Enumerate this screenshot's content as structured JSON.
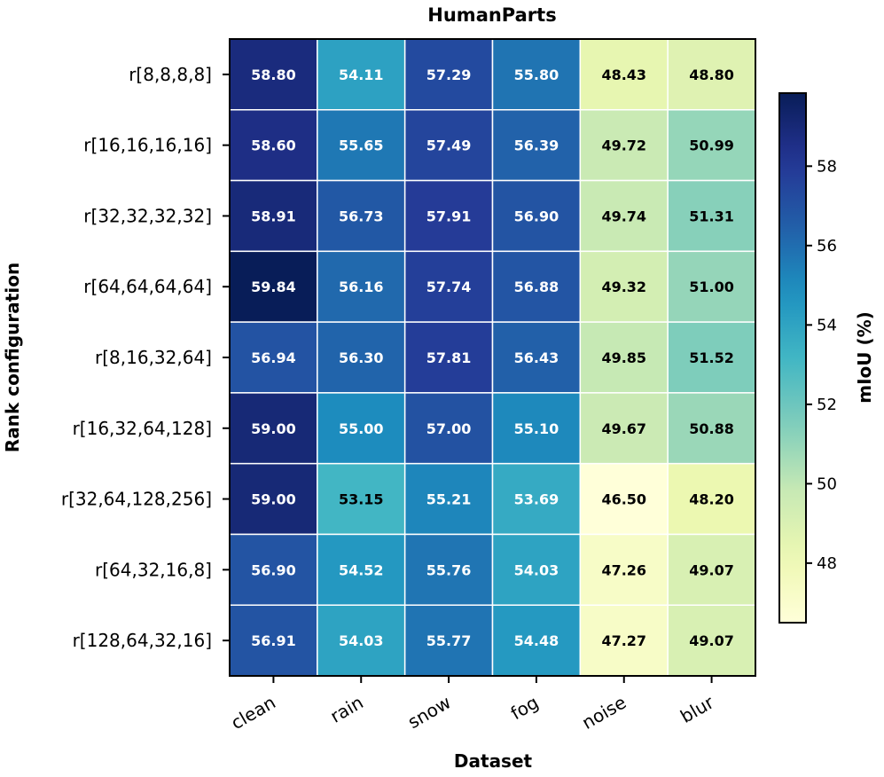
{
  "chart_data": {
    "type": "heatmap",
    "title": "HumanParts",
    "xlabel": "Dataset",
    "ylabel": "Rank configuration",
    "colorbar_label": "mIoU (%)",
    "columns": [
      "clean",
      "rain",
      "snow",
      "fog",
      "noise",
      "blur"
    ],
    "rows": [
      "r[8,8,8,8]",
      "r[16,16,16,16]",
      "r[32,32,32,32]",
      "r[64,64,64,64]",
      "r[8,16,32,64]",
      "r[16,32,64,128]",
      "r[32,64,128,256]",
      "r[64,32,16,8]",
      "r[128,64,32,16]"
    ],
    "values": [
      [
        58.8,
        54.11,
        57.29,
        55.8,
        48.43,
        48.8
      ],
      [
        58.6,
        55.65,
        57.49,
        56.39,
        49.72,
        50.99
      ],
      [
        58.91,
        56.73,
        57.91,
        56.9,
        49.74,
        51.31
      ],
      [
        59.84,
        56.16,
        57.74,
        56.88,
        49.32,
        51.0
      ],
      [
        56.94,
        56.3,
        57.81,
        56.43,
        49.85,
        51.52
      ],
      [
        59.0,
        55.0,
        57.0,
        55.1,
        49.67,
        50.88
      ],
      [
        59.0,
        53.15,
        55.21,
        53.69,
        46.5,
        48.2
      ],
      [
        56.9,
        54.52,
        55.76,
        54.03,
        47.26,
        49.07
      ],
      [
        56.91,
        54.03,
        55.77,
        54.48,
        47.27,
        49.07
      ]
    ],
    "display_labels": [
      [
        "58.80",
        "54.11",
        "57.29",
        "55.80",
        "48.43",
        "48.80"
      ],
      [
        "58.60",
        "55.65",
        "57.49",
        "56.39",
        "49.72",
        "50.99"
      ],
      [
        "58.91",
        "56.73",
        "57.91",
        "56.90",
        "49.74",
        "51.31"
      ],
      [
        "59.84",
        "56.16",
        "57.74",
        "56.88",
        "49.32",
        "51.00"
      ],
      [
        "56.94",
        "56.30",
        "57.81",
        "56.43",
        "49.85",
        "51.52"
      ],
      [
        "59.00",
        "55.00",
        "57.00",
        "55.10",
        "49.67",
        "50.88"
      ],
      [
        "59.00",
        "53.15",
        "55.21",
        "53.69",
        "46.50",
        "48.20"
      ],
      [
        "56.90",
        "54.52",
        "55.76",
        "54.03",
        "47.26",
        "49.07"
      ],
      [
        "56.91",
        "54.03",
        "55.77",
        "54.48",
        "47.27",
        "49.07"
      ]
    ],
    "color_range": [
      46.5,
      59.84
    ],
    "colormap": "YlGnBu",
    "colorbar_ticks": [
      48,
      50,
      52,
      54,
      56,
      58
    ],
    "colorbar_tick_labels": [
      "48",
      "50",
      "52",
      "54",
      "56",
      "58"
    ],
    "light_text_threshold": 53.5
  }
}
